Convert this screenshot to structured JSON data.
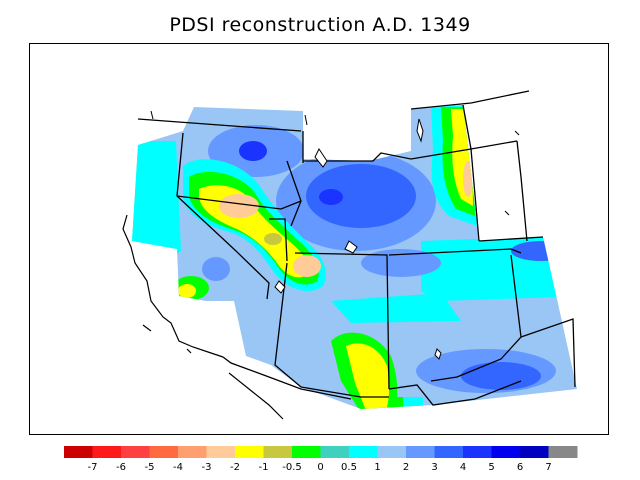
{
  "title": "PDSI reconstruction A.D. 1349",
  "legend": {
    "bins": [
      {
        "color": "#cc0000"
      },
      {
        "color": "#ff1a1a"
      },
      {
        "color": "#ff4040"
      },
      {
        "color": "#ff6a40"
      },
      {
        "color": "#ff9e6e"
      },
      {
        "color": "#ffcc99"
      },
      {
        "color": "#ffff00"
      },
      {
        "color": "#c8c840"
      },
      {
        "color": "#00ff00"
      },
      {
        "color": "#40d0c0"
      },
      {
        "color": "#00ffff"
      },
      {
        "color": "#99c6f5"
      },
      {
        "color": "#6699ff"
      },
      {
        "color": "#3366ff"
      },
      {
        "color": "#1a33ff"
      },
      {
        "color": "#0000ee"
      },
      {
        "color": "#0000c0"
      },
      {
        "color": "#888888"
      }
    ],
    "tick_labels": [
      "-7",
      "-6",
      "-5",
      "-4",
      "-3",
      "-2",
      "-1",
      "-0.5",
      "0",
      "0.5",
      "1",
      "2",
      "3",
      "4",
      "5",
      "6",
      "7"
    ]
  }
}
